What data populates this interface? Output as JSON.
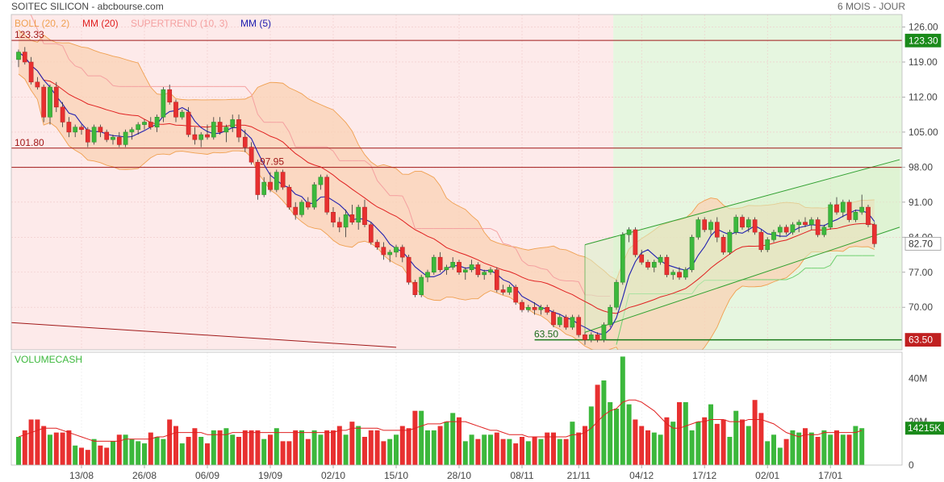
{
  "header": {
    "title": "SOITEC SILICON - abcbourse.com",
    "period": "6 MOIS - JOUR"
  },
  "indicators": [
    {
      "label": "BOLL (20, 2)",
      "color": "#f0a050"
    },
    {
      "label": "MM (20)",
      "color": "#e02020"
    },
    {
      "label": "SUPERTREND (10, 3)",
      "color": "#f4a0a0"
    },
    {
      "label": "MM (5)",
      "color": "#2020b0"
    }
  ],
  "volume_label": "VOLUMECASH",
  "colors": {
    "up": "#3cb83c",
    "down": "#e83030",
    "boll_fill": "#f9d2b4",
    "boll_line": "#f0a050",
    "ma20": "#e02020",
    "ma5": "#2020b0",
    "supertrend_down": "#f4a0a0",
    "supertrend_up": "#70d070",
    "bg_down": "#fdeaea",
    "bg_up": "#e6f6e0",
    "channel": "#30a030",
    "hline": "#a01818"
  },
  "chart_data": [
    {
      "type": "candlestick",
      "title": "SOITEC SILICON",
      "ylim": [
        61.5,
        128.5
      ],
      "y_ticks": [
        126,
        119,
        112,
        105,
        98,
        91,
        84,
        77,
        70
      ],
      "y_tick_labels": [
        "126.00",
        "119.00",
        "112.00",
        "105.00",
        "98.00",
        "91.00",
        "84.00",
        "77.00",
        "70.00"
      ],
      "x_ticks": [
        {
          "index": 10,
          "label": "13/08"
        },
        {
          "index": 20,
          "label": "26/08"
        },
        {
          "index": 30,
          "label": "06/09"
        },
        {
          "index": 40,
          "label": "19/09"
        },
        {
          "index": 50,
          "label": "02/10"
        },
        {
          "index": 60,
          "label": "15/10"
        },
        {
          "index": 70,
          "label": "28/10"
        },
        {
          "index": 80,
          "label": "08/11"
        },
        {
          "index": 89,
          "label": "21/11"
        },
        {
          "index": 99,
          "label": "04/12"
        },
        {
          "index": 109,
          "label": "17/12"
        },
        {
          "index": 119,
          "label": "02/01"
        },
        {
          "index": 129,
          "label": "17/01"
        }
      ],
      "ohlc": [
        [
          119.5,
          121.5,
          118.0,
          121.0
        ],
        [
          121.0,
          122.0,
          118.5,
          119.0
        ],
        [
          119.0,
          120.0,
          114.5,
          115.0
        ],
        [
          115.0,
          116.0,
          113.5,
          114.0
        ],
        [
          114.0,
          114.5,
          107.0,
          108.0
        ],
        [
          108.0,
          114.5,
          106.5,
          114.0
        ],
        [
          114.0,
          115.0,
          109.0,
          110.0
        ],
        [
          110.0,
          111.0,
          106.0,
          107.0
        ],
        [
          107.0,
          108.0,
          104.0,
          105.0
        ],
        [
          105.0,
          106.5,
          104.0,
          106.0
        ],
        [
          106.0,
          106.5,
          104.5,
          105.5
        ],
        [
          105.5,
          106.0,
          102.0,
          103.0
        ],
        [
          103.0,
          106.5,
          102.5,
          106.0
        ],
        [
          106.0,
          106.5,
          104.0,
          105.0
        ],
        [
          105.0,
          105.5,
          103.0,
          103.5
        ],
        [
          103.5,
          104.5,
          102.5,
          104.0
        ],
        [
          104.0,
          105.0,
          102.0,
          102.5
        ],
        [
          102.5,
          105.5,
          102.0,
          105.0
        ],
        [
          105.0,
          106.0,
          103.5,
          105.5
        ],
        [
          105.5,
          107.0,
          104.5,
          106.5
        ],
        [
          106.5,
          107.5,
          105.5,
          107.0
        ],
        [
          107.0,
          108.0,
          105.5,
          106.0
        ],
        [
          106.0,
          108.5,
          105.0,
          108.0
        ],
        [
          108.0,
          114.0,
          107.0,
          113.5
        ],
        [
          113.5,
          114.5,
          110.5,
          111.0
        ],
        [
          111.0,
          111.5,
          107.0,
          108.0
        ],
        [
          108.0,
          109.5,
          107.5,
          109.0
        ],
        [
          109.0,
          110.0,
          104.0,
          104.5
        ],
        [
          104.5,
          106.0,
          102.5,
          103.5
        ],
        [
          103.5,
          105.0,
          102.0,
          104.5
        ],
        [
          104.5,
          106.5,
          103.5,
          104.0
        ],
        [
          104.0,
          108.0,
          103.5,
          107.0
        ],
        [
          107.0,
          108.0,
          104.5,
          105.0
        ],
        [
          105.0,
          106.5,
          103.0,
          106.0
        ],
        [
          106.0,
          108.5,
          105.0,
          107.5
        ],
        [
          107.5,
          108.5,
          103.0,
          104.0
        ],
        [
          104.0,
          105.5,
          101.0,
          102.0
        ],
        [
          102.0,
          103.0,
          98.5,
          99.0
        ],
        [
          99.0,
          99.5,
          91.5,
          92.5
        ],
        [
          92.5,
          96.0,
          92.0,
          95.0
        ],
        [
          95.0,
          97.0,
          93.0,
          93.5
        ],
        [
          93.5,
          97.5,
          93.0,
          97.0
        ],
        [
          97.0,
          97.5,
          93.5,
          94.0
        ],
        [
          94.0,
          94.5,
          89.5,
          90.0
        ],
        [
          90.0,
          91.0,
          87.5,
          88.5
        ],
        [
          88.5,
          91.5,
          88.0,
          91.0
        ],
        [
          91.0,
          92.0,
          89.5,
          90.0
        ],
        [
          90.0,
          95.0,
          89.5,
          94.5
        ],
        [
          94.5,
          96.5,
          93.5,
          96.0
        ],
        [
          96.0,
          96.5,
          88.5,
          89.0
        ],
        [
          89.0,
          90.0,
          86.0,
          87.0
        ],
        [
          87.0,
          88.0,
          85.0,
          86.0
        ],
        [
          86.0,
          89.5,
          84.0,
          88.5
        ],
        [
          88.5,
          90.5,
          86.5,
          87.0
        ],
        [
          87.0,
          90.5,
          85.5,
          90.0
        ],
        [
          90.0,
          91.5,
          86.0,
          86.5
        ],
        [
          86.5,
          87.0,
          82.5,
          83.0
        ],
        [
          83.0,
          83.5,
          81.5,
          82.0
        ],
        [
          82.0,
          83.0,
          79.5,
          80.5
        ],
        [
          80.5,
          81.5,
          79.0,
          81.0
        ],
        [
          81.0,
          82.5,
          80.0,
          82.0
        ],
        [
          82.0,
          82.5,
          79.0,
          80.0
        ],
        [
          80.0,
          80.5,
          74.5,
          75.0
        ],
        [
          75.0,
          75.5,
          72.0,
          72.5
        ],
        [
          72.5,
          76.5,
          72.0,
          76.0
        ],
        [
          76.0,
          77.5,
          75.0,
          77.0
        ],
        [
          77.0,
          80.5,
          76.5,
          80.0
        ],
        [
          80.0,
          81.0,
          77.0,
          77.5
        ],
        [
          77.5,
          78.5,
          76.5,
          78.0
        ],
        [
          78.0,
          80.0,
          77.5,
          79.0
        ],
        [
          79.0,
          79.5,
          76.5,
          77.0
        ],
        [
          77.0,
          78.0,
          75.5,
          77.5
        ],
        [
          77.5,
          79.5,
          77.0,
          78.5
        ],
        [
          78.5,
          79.0,
          76.0,
          76.5
        ],
        [
          76.5,
          77.5,
          75.5,
          77.0
        ],
        [
          77.0,
          78.0,
          76.5,
          77.5
        ],
        [
          77.5,
          78.0,
          73.0,
          73.5
        ],
        [
          73.5,
          74.5,
          72.5,
          73.0
        ],
        [
          73.0,
          74.5,
          72.5,
          74.0
        ],
        [
          74.0,
          74.5,
          70.5,
          71.0
        ],
        [
          71.0,
          71.5,
          69.0,
          69.5
        ],
        [
          69.5,
          70.5,
          69.0,
          70.0
        ],
        [
          70.0,
          71.0,
          68.5,
          69.5
        ],
        [
          69.5,
          70.5,
          68.5,
          70.0
        ],
        [
          70.0,
          70.5,
          68.5,
          69.0
        ],
        [
          69.0,
          69.5,
          66.0,
          66.5
        ],
        [
          66.5,
          68.5,
          66.0,
          68.0
        ],
        [
          68.0,
          68.5,
          65.5,
          66.0
        ],
        [
          66.0,
          68.5,
          65.5,
          68.0
        ],
        [
          68.0,
          68.5,
          64.0,
          64.5
        ],
        [
          64.5,
          65.0,
          62.5,
          63.5
        ],
        [
          63.5,
          65.0,
          63.0,
          64.5
        ],
        [
          64.5,
          65.0,
          63.0,
          63.5
        ],
        [
          63.5,
          67.0,
          63.0,
          66.5
        ],
        [
          66.5,
          70.5,
          66.0,
          70.0
        ],
        [
          70.0,
          75.5,
          69.5,
          75.0
        ],
        [
          75.0,
          85.0,
          74.5,
          84.5
        ],
        [
          84.5,
          86.0,
          83.0,
          85.5
        ],
        [
          85.5,
          86.0,
          80.0,
          80.5
        ],
        [
          80.5,
          81.5,
          78.5,
          79.0
        ],
        [
          79.0,
          79.5,
          77.5,
          78.0
        ],
        [
          78.0,
          79.5,
          77.0,
          79.0
        ],
        [
          79.0,
          80.5,
          78.5,
          80.0
        ],
        [
          80.0,
          80.5,
          76.0,
          76.5
        ],
        [
          76.5,
          77.5,
          75.5,
          77.0
        ],
        [
          77.0,
          78.0,
          75.5,
          76.0
        ],
        [
          76.0,
          78.0,
          75.5,
          77.5
        ],
        [
          77.5,
          84.5,
          77.0,
          84.0
        ],
        [
          84.0,
          88.0,
          83.5,
          87.5
        ],
        [
          87.5,
          88.0,
          85.0,
          85.5
        ],
        [
          85.5,
          87.5,
          84.5,
          87.0
        ],
        [
          87.0,
          88.0,
          83.0,
          84.0
        ],
        [
          84.0,
          84.5,
          80.5,
          81.0
        ],
        [
          81.0,
          85.5,
          80.5,
          85.0
        ],
        [
          85.0,
          88.5,
          84.5,
          88.0
        ],
        [
          88.0,
          88.5,
          85.5,
          86.0
        ],
        [
          86.0,
          88.0,
          85.0,
          87.5
        ],
        [
          87.5,
          88.0,
          84.5,
          85.0
        ],
        [
          85.0,
          85.5,
          81.0,
          81.5
        ],
        [
          81.5,
          84.0,
          81.0,
          83.5
        ],
        [
          83.5,
          85.5,
          83.0,
          85.0
        ],
        [
          85.0,
          86.5,
          84.0,
          86.0
        ],
        [
          86.0,
          86.5,
          84.5,
          85.0
        ],
        [
          85.0,
          87.0,
          84.5,
          86.5
        ],
        [
          86.5,
          87.5,
          85.0,
          87.0
        ],
        [
          87.0,
          88.0,
          86.0,
          86.5
        ],
        [
          86.5,
          88.0,
          85.5,
          87.5
        ],
        [
          87.5,
          88.0,
          84.0,
          84.5
        ],
        [
          84.5,
          86.5,
          84.0,
          86.0
        ],
        [
          86.0,
          91.0,
          85.5,
          90.5
        ],
        [
          90.5,
          92.0,
          88.5,
          89.0
        ],
        [
          89.0,
          91.5,
          88.0,
          91.0
        ],
        [
          91.0,
          91.5,
          87.0,
          87.5
        ],
        [
          87.5,
          89.5,
          87.0,
          89.0
        ],
        [
          89.0,
          92.5,
          88.5,
          90.0
        ],
        [
          90.0,
          90.5,
          86.0,
          86.5
        ],
        [
          86.5,
          87.0,
          82.0,
          82.7
        ]
      ],
      "horizontal_levels": [
        {
          "value": 123.33,
          "label": "123.33"
        },
        {
          "value": 101.8,
          "label": "101.80"
        },
        {
          "value": 97.95,
          "label": "97.95"
        },
        {
          "value": 63.5,
          "label": "63.50"
        }
      ],
      "last_price_labels": [
        {
          "value": 123.3,
          "text": "123.30"
        },
        {
          "value": 82.7,
          "text": "82.70"
        },
        {
          "value": 63.5,
          "text": "63.50"
        }
      ],
      "trend_channel": {
        "start_index": 90,
        "end_index": 140,
        "upper": [
          82.5,
          99.5
        ],
        "lower": [
          65.0,
          86.0
        ]
      },
      "descending_trendline": {
        "start_index": -2,
        "end_index": 60,
        "values": [
          67.0,
          62.0
        ]
      }
    },
    {
      "type": "bar",
      "title": "VOLUMECASH",
      "ylim": [
        0,
        52
      ],
      "y_ticks": [
        0,
        20,
        40
      ],
      "y_tick_labels": [
        "0",
        "20M",
        "40M"
      ],
      "last_value_label": "14215K",
      "unit": "millions",
      "volumes": [
        13,
        16,
        21,
        21,
        18,
        14,
        15,
        15,
        16,
        9,
        8,
        7,
        12,
        9,
        8,
        11,
        14,
        14,
        12,
        11,
        10,
        15,
        13,
        12,
        21,
        18,
        10,
        13,
        17,
        13,
        10,
        16,
        16,
        17,
        14,
        13,
        16,
        16,
        16,
        12,
        14,
        17,
        11,
        11,
        16,
        16,
        12,
        16,
        14,
        16,
        16,
        18,
        14,
        20,
        18,
        13,
        16,
        16,
        11,
        12,
        14,
        18,
        17,
        25,
        25,
        16,
        16,
        18,
        20,
        24,
        22,
        11,
        14,
        12,
        14,
        14,
        15,
        12,
        12,
        10,
        13,
        11,
        13,
        12,
        15,
        15,
        12,
        12,
        20,
        15,
        18,
        27,
        37,
        39,
        29,
        26,
        50,
        28,
        21,
        18,
        16,
        15,
        14,
        22,
        20,
        29,
        29,
        16,
        20,
        22,
        28,
        19,
        21,
        13,
        25,
        21,
        18,
        30,
        24,
        11,
        14,
        8,
        12,
        16,
        15,
        17,
        15,
        13,
        16,
        14,
        16,
        14,
        14,
        18,
        17
      ],
      "ma_line": [
        13,
        14,
        15,
        16,
        17,
        17,
        17,
        16,
        15,
        14,
        13,
        12,
        11,
        11,
        11,
        11,
        11,
        12,
        12,
        12,
        12,
        12,
        13,
        13,
        14,
        15,
        15,
        15,
        15,
        15,
        14,
        14,
        14,
        14,
        15,
        15,
        15,
        15,
        15,
        15,
        15,
        15,
        15,
        15,
        15,
        15,
        15,
        15,
        15,
        15,
        15,
        16,
        16,
        17,
        17,
        17,
        17,
        17,
        16,
        16,
        16,
        16,
        16,
        17,
        18,
        19,
        19,
        19,
        20,
        20,
        20,
        20,
        19,
        18,
        17,
        16,
        16,
        15,
        14,
        14,
        14,
        13,
        13,
        13,
        13,
        13,
        13,
        13,
        14,
        14,
        15,
        17,
        20,
        23,
        25,
        26,
        29,
        30,
        30,
        29,
        27,
        25,
        22,
        19,
        17,
        17,
        18,
        19,
        20,
        20,
        21,
        21,
        21,
        20,
        20,
        20,
        21,
        21,
        21,
        20,
        19,
        17,
        15,
        14,
        13,
        14,
        14,
        14,
        15,
        15,
        15,
        15,
        15,
        15,
        16
      ]
    }
  ]
}
